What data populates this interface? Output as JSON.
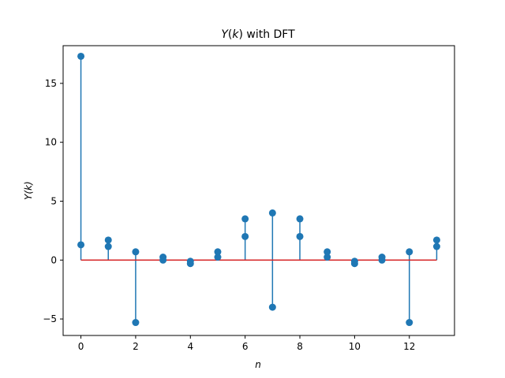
{
  "chart_data": {
    "type": "stem",
    "title_parts": {
      "var": "Y",
      "paren_open": "(",
      "k": "k",
      "paren_close": ")",
      "rest": " with DFT"
    },
    "xlabel": "n",
    "ylabel": "Y(k)",
    "xlim": [
      -0.65,
      13.65
    ],
    "ylim": [
      -6.4,
      18.2
    ],
    "xticks": [
      0,
      2,
      4,
      6,
      8,
      10,
      12
    ],
    "xtick_labels": [
      "0",
      "2",
      "4",
      "6",
      "8",
      "10",
      "12"
    ],
    "yticks": [
      -5,
      0,
      5,
      10,
      15
    ],
    "ytick_labels": [
      "−5",
      "0",
      "5",
      "10",
      "15"
    ],
    "grid": false,
    "series": [
      {
        "values": [
          17.3,
          1.7,
          -5.3,
          0.25,
          -0.1,
          0.7,
          3.5,
          4.0,
          3.5,
          0.7,
          -0.1,
          0.25,
          -5.3,
          1.7
        ]
      },
      {
        "values": [
          1.3,
          1.15,
          0.7,
          0.0,
          -0.3,
          0.25,
          2.0,
          -4.0,
          2.0,
          0.25,
          -0.3,
          0.0,
          0.7,
          1.15
        ]
      }
    ],
    "baseline": 0,
    "colors": {
      "stem": "#1f77b4",
      "marker": "#1f77b4",
      "baseline": "#d62728"
    }
  }
}
